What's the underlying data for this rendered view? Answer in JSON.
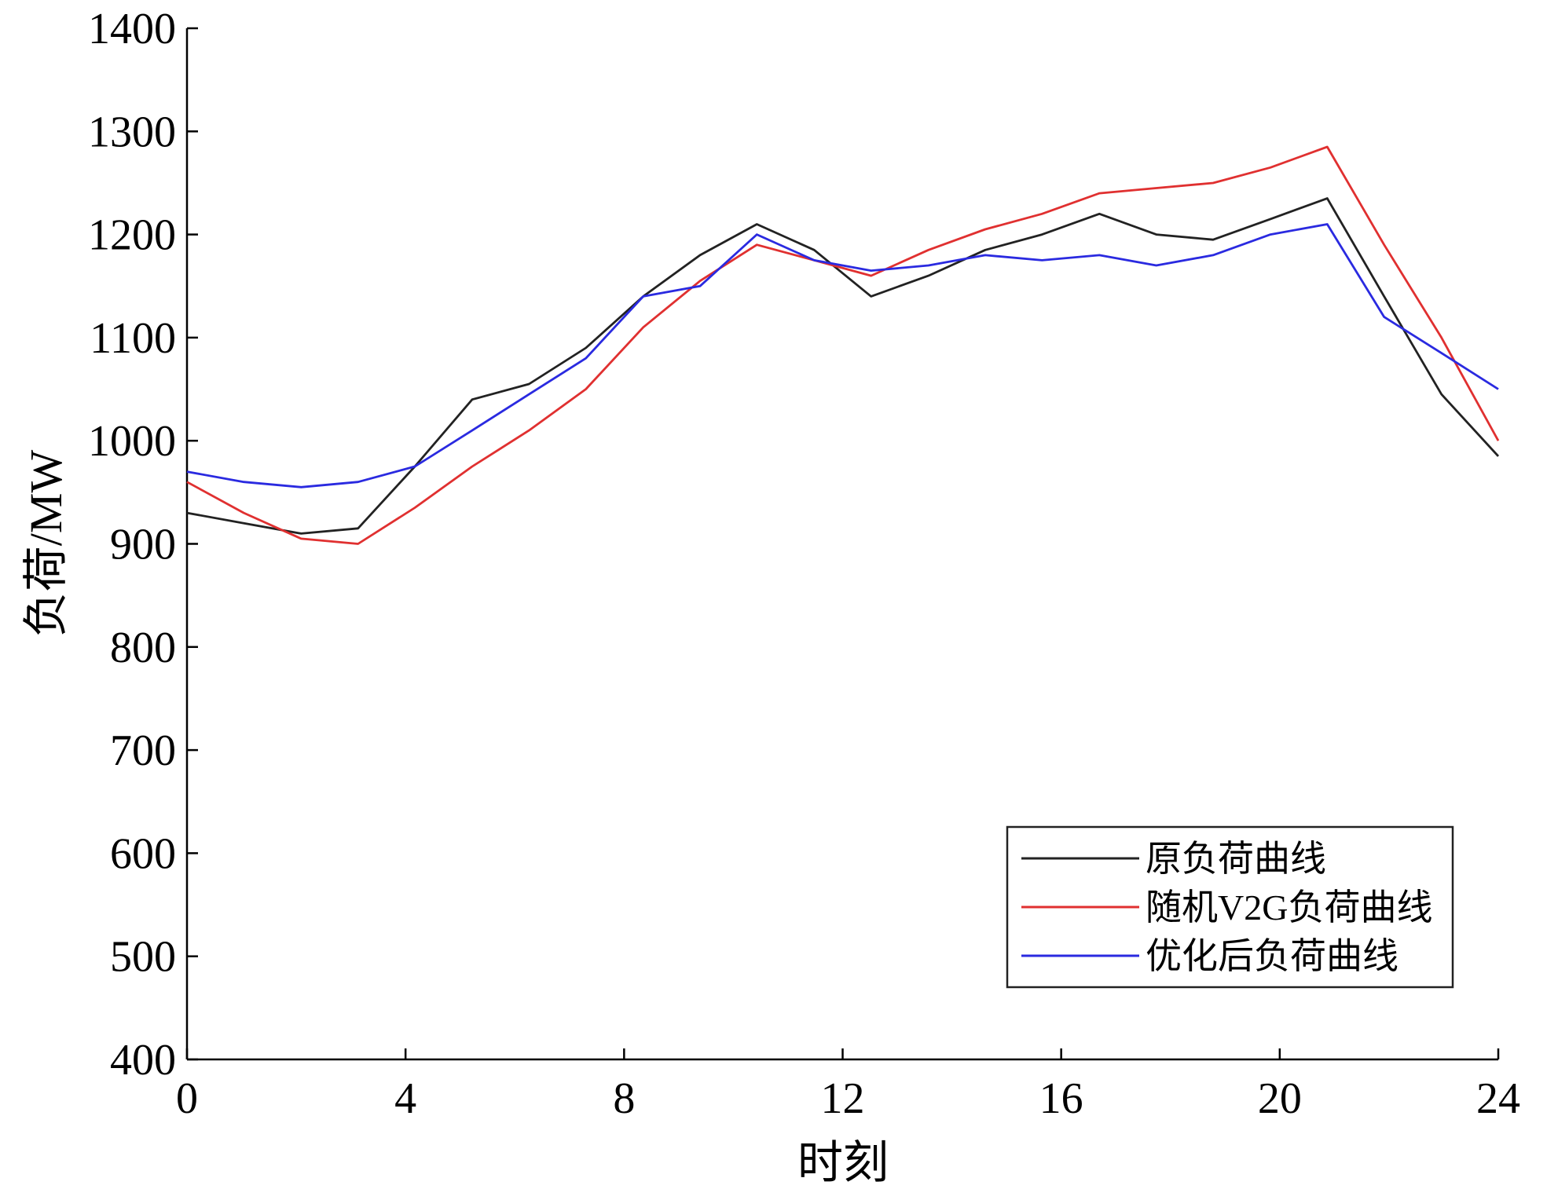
{
  "chart_data": {
    "type": "line",
    "title": "",
    "xlabel": "时刻",
    "ylabel": "负荷/MW",
    "xlim": [
      0,
      24
    ],
    "ylim": [
      400,
      1400
    ],
    "xticks": [
      "0",
      "4",
      "8",
      "12",
      "16",
      "20",
      "24"
    ],
    "yticks": [
      "400",
      "500",
      "600",
      "700",
      "800",
      "900",
      "1000",
      "1100",
      "1200",
      "1300",
      "1400"
    ],
    "grid": false,
    "legend_position": "bottom-right",
    "x": [
      0,
      1.04,
      2.09,
      3.13,
      4.17,
      5.22,
      6.26,
      7.3,
      8.35,
      9.39,
      10.43,
      11.48,
      12.52,
      13.57,
      14.61,
      15.65,
      16.7,
      17.74,
      18.78,
      19.83,
      20.87,
      21.91,
      22.96,
      24
    ],
    "series": [
      {
        "name": "原负荷曲线",
        "color": "#222222",
        "values": [
          930,
          920,
          910,
          915,
          975,
          1040,
          1055,
          1090,
          1140,
          1180,
          1210,
          1185,
          1140,
          1160,
          1185,
          1200,
          1220,
          1200,
          1195,
          1215,
          1235,
          1140,
          1045,
          985
        ]
      },
      {
        "name": "随机V2G负荷曲线",
        "color": "#e03030",
        "values": [
          960,
          930,
          905,
          900,
          935,
          975,
          1010,
          1050,
          1110,
          1155,
          1190,
          1175,
          1160,
          1185,
          1205,
          1220,
          1240,
          1245,
          1250,
          1265,
          1285,
          1190,
          1100,
          1000
        ]
      },
      {
        "name": "优化后负荷曲线",
        "color": "#2a2ae0",
        "values": [
          970,
          960,
          955,
          960,
          975,
          1010,
          1045,
          1080,
          1140,
          1150,
          1200,
          1175,
          1165,
          1170,
          1180,
          1175,
          1180,
          1170,
          1180,
          1200,
          1210,
          1120,
          1085,
          1050
        ]
      }
    ]
  }
}
